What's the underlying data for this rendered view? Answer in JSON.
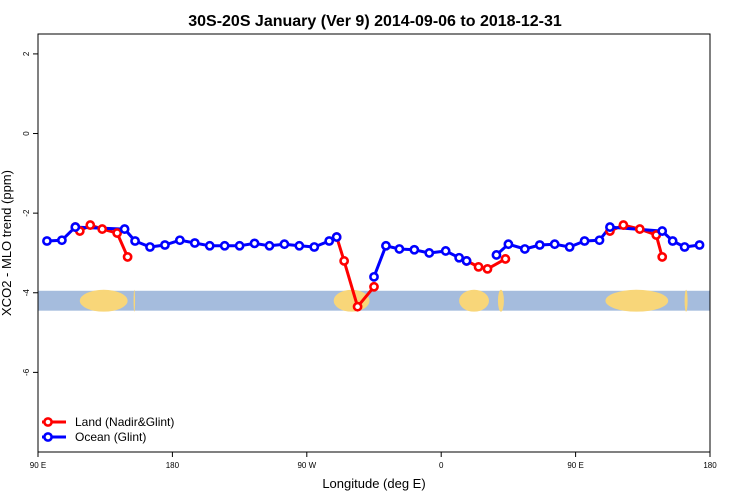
{
  "chart_data": {
    "type": "line",
    "title": "30S-20S January (Ver 9)   2014-09-06 to 2018-12-31",
    "xlabel": "Longitude (deg E)",
    "ylabel": "XCO2 - MLO trend (ppm)",
    "xlim": [
      90,
      540
    ],
    "ylim": [
      -8,
      2.5
    ],
    "x_ticks": [
      {
        "value": 90,
        "label": "90 E"
      },
      {
        "value": 180,
        "label": "180"
      },
      {
        "value": 270,
        "label": "90 W"
      },
      {
        "value": 360,
        "label": "0"
      },
      {
        "value": 450,
        "label": "90 E"
      },
      {
        "value": 540,
        "label": "180"
      }
    ],
    "y_ticks": [
      {
        "value": 2,
        "label": "2"
      },
      {
        "value": 0,
        "label": "0"
      },
      {
        "value": -2,
        "label": "-2"
      },
      {
        "value": -4,
        "label": "-4"
      },
      {
        "value": -6,
        "label": "-6"
      }
    ],
    "land_band": {
      "ymin": -4.45,
      "ymax": -3.95,
      "ocean_color": "#a5bcdd",
      "land_color": "#f8d679"
    },
    "land_regions": [
      {
        "x0": 118,
        "x1": 150
      },
      {
        "x0": 154,
        "x1": 155
      },
      {
        "x0": 288,
        "x1": 312
      },
      {
        "x0": 372,
        "x1": 392
      },
      {
        "x0": 398,
        "x1": 402
      },
      {
        "x0": 470,
        "x1": 512
      },
      {
        "x0": 523,
        "x1": 525
      }
    ],
    "legend": {
      "position": "bottom-left"
    },
    "series": [
      {
        "name": "Land (Nadir&Glint)",
        "color": "#ff0000",
        "segments": [
          [
            [
              115,
              -2.35
            ],
            [
              118,
              -2.45
            ],
            [
              125,
              -2.3
            ],
            [
              133,
              -2.4
            ],
            [
              143,
              -2.5
            ],
            [
              150,
              -3.1
            ]
          ],
          [
            [
              290,
              -2.6
            ],
            [
              295,
              -3.2
            ],
            [
              304,
              -4.35
            ],
            [
              315,
              -3.85
            ]
          ],
          [
            [
              377,
              -3.2
            ],
            [
              385,
              -3.35
            ],
            [
              391,
              -3.4
            ],
            [
              403,
              -3.15
            ]
          ],
          [
            [
              473,
              -2.45
            ],
            [
              482,
              -2.3
            ],
            [
              493,
              -2.4
            ],
            [
              504,
              -2.55
            ],
            [
              508,
              -3.1
            ]
          ]
        ]
      },
      {
        "name": "Ocean (Glint)",
        "color": "#0000ff",
        "segments": [
          [
            [
              96,
              -2.7
            ],
            [
              106,
              -2.68
            ],
            [
              115,
              -2.35
            ],
            [
              148,
              -2.4
            ],
            [
              155,
              -2.7
            ],
            [
              165,
              -2.85
            ],
            [
              175,
              -2.8
            ],
            [
              185,
              -2.68
            ],
            [
              195,
              -2.75
            ],
            [
              205,
              -2.82
            ],
            [
              215,
              -2.82
            ],
            [
              225,
              -2.82
            ],
            [
              235,
              -2.76
            ],
            [
              245,
              -2.82
            ],
            [
              255,
              -2.78
            ],
            [
              265,
              -2.82
            ],
            [
              275,
              -2.85
            ],
            [
              285,
              -2.7
            ],
            [
              290,
              -2.6
            ]
          ],
          [
            [
              315,
              -3.6
            ],
            [
              323,
              -2.82
            ],
            [
              332,
              -2.9
            ],
            [
              342,
              -2.92
            ],
            [
              352,
              -3.0
            ],
            [
              363,
              -2.95
            ],
            [
              372,
              -3.12
            ],
            [
              377,
              -3.2
            ]
          ],
          [
            [
              397,
              -3.05
            ],
            [
              405,
              -2.78
            ],
            [
              416,
              -2.9
            ],
            [
              426,
              -2.8
            ],
            [
              436,
              -2.78
            ],
            [
              446,
              -2.85
            ],
            [
              456,
              -2.7
            ],
            [
              466,
              -2.68
            ],
            [
              473,
              -2.35
            ],
            [
              508,
              -2.45
            ],
            [
              515,
              -2.7
            ],
            [
              523,
              -2.85
            ],
            [
              533,
              -2.8
            ]
          ]
        ]
      }
    ]
  }
}
